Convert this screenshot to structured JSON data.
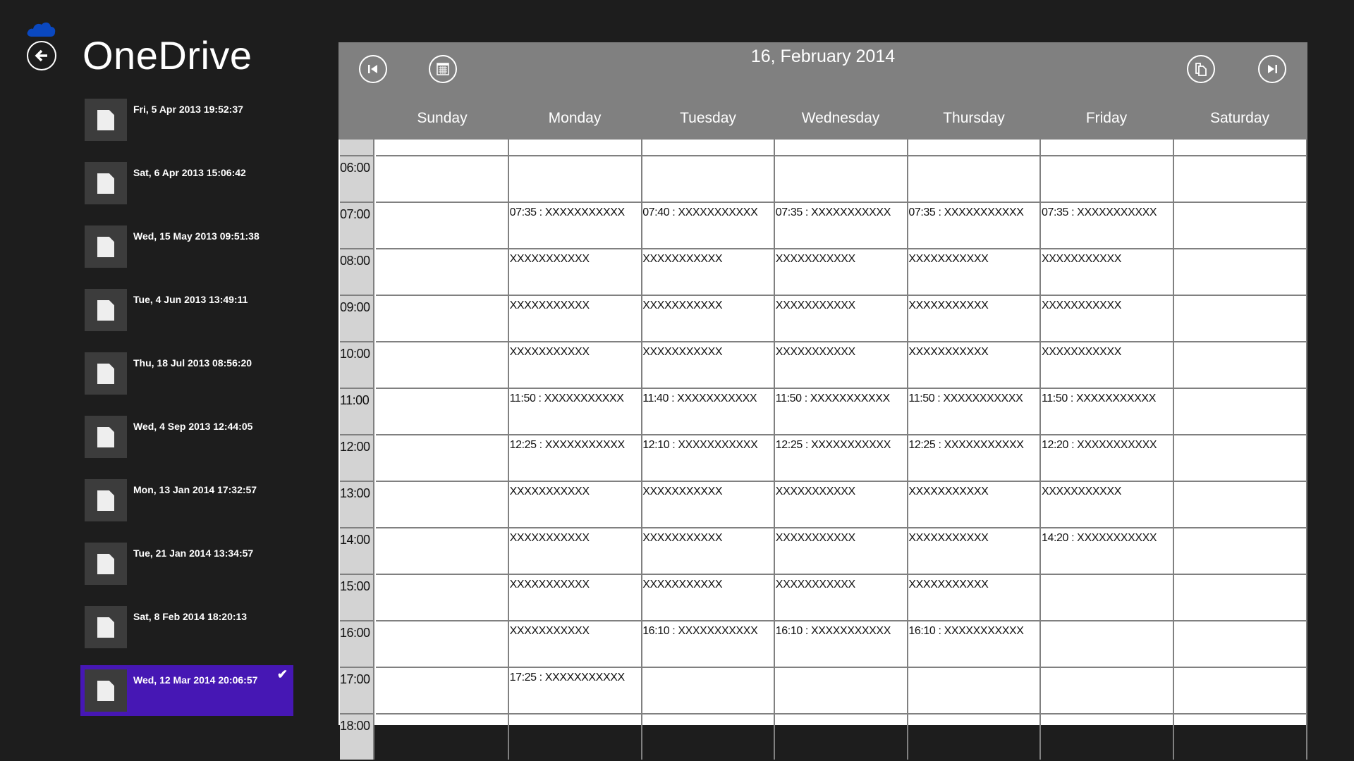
{
  "app": {
    "title": "OneDrive",
    "accent": "#4617b4",
    "logo_icon": "onedrive-cloud-icon"
  },
  "files": [
    {
      "label": "Fri, 5 Apr 2013 19:52:37",
      "selected": false
    },
    {
      "label": "Sat, 6 Apr 2013 15:06:42",
      "selected": false
    },
    {
      "label": "Wed, 15 May 2013 09:51:38",
      "selected": false
    },
    {
      "label": "Tue, 4 Jun 2013 13:49:11",
      "selected": false
    },
    {
      "label": "Thu, 18 Jul 2013 08:56:20",
      "selected": false
    },
    {
      "label": "Wed, 4 Sep 2013 12:44:05",
      "selected": false
    },
    {
      "label": "Mon, 13 Jan 2014 17:32:57",
      "selected": false
    },
    {
      "label": "Tue, 21 Jan 2014 13:34:57",
      "selected": false
    },
    {
      "label": "Sat, 8 Feb 2014 18:20:13",
      "selected": false
    },
    {
      "label": "Wed, 12 Mar 2014 20:06:57",
      "selected": true,
      "check": "✔"
    }
  ],
  "calendar": {
    "date": "16, February 2014",
    "days": [
      "Sunday",
      "Monday",
      "Tuesday",
      "Wednesday",
      "Thursday",
      "Friday",
      "Saturday"
    ],
    "rows": [
      {
        "time": "",
        "cells": [
          "",
          "",
          "",
          "",
          "",
          "",
          ""
        ]
      },
      {
        "time": "06:00",
        "cells": [
          "",
          "",
          "",
          "",
          "",
          "",
          ""
        ]
      },
      {
        "time": "07:00",
        "cells": [
          "",
          "07:35 : XXXXXXXXXXX",
          "07:40 : XXXXXXXXXXX",
          "07:35 : XXXXXXXXXXX",
          "07:35 : XXXXXXXXXXX",
          "07:35 : XXXXXXXXXXX",
          ""
        ]
      },
      {
        "time": "08:00",
        "cells": [
          "",
          "XXXXXXXXXXX",
          "XXXXXXXXXXX",
          "XXXXXXXXXXX",
          "XXXXXXXXXXX",
          "XXXXXXXXXXX",
          ""
        ]
      },
      {
        "time": "09:00",
        "cells": [
          "",
          "XXXXXXXXXXX",
          "XXXXXXXXXXX",
          "XXXXXXXXXXX",
          "XXXXXXXXXXX",
          "XXXXXXXXXXX",
          ""
        ]
      },
      {
        "time": "10:00",
        "cells": [
          "",
          "XXXXXXXXXXX",
          "XXXXXXXXXXX",
          "XXXXXXXXXXX",
          "XXXXXXXXXXX",
          "XXXXXXXXXXX",
          ""
        ]
      },
      {
        "time": "11:00",
        "cells": [
          "",
          "11:50 : XXXXXXXXXXX",
          "11:40 : XXXXXXXXXXX",
          "11:50 : XXXXXXXXXXX",
          "11:50 : XXXXXXXXXXX",
          "11:50 : XXXXXXXXXXX",
          ""
        ]
      },
      {
        "time": "12:00",
        "cells": [
          "",
          "12:25 : XXXXXXXXXXX",
          "12:10 : XXXXXXXXXXX",
          "12:25 : XXXXXXXXXXX",
          "12:25 : XXXXXXXXXXX",
          "12:20 : XXXXXXXXXXX",
          ""
        ]
      },
      {
        "time": "13:00",
        "cells": [
          "",
          "XXXXXXXXXXX",
          "XXXXXXXXXXX",
          "XXXXXXXXXXX",
          "XXXXXXXXXXX",
          "XXXXXXXXXXX",
          ""
        ]
      },
      {
        "time": "14:00",
        "cells": [
          "",
          "XXXXXXXXXXX",
          "XXXXXXXXXXX",
          "XXXXXXXXXXX",
          "XXXXXXXXXXX",
          "14:20 : XXXXXXXXXXX",
          ""
        ]
      },
      {
        "time": "15:00",
        "cells": [
          "",
          "XXXXXXXXXXX",
          "XXXXXXXXXXX",
          "XXXXXXXXXXX",
          "XXXXXXXXXXX",
          "",
          ""
        ]
      },
      {
        "time": "16:00",
        "cells": [
          "",
          "XXXXXXXXXXX",
          "16:10 : XXXXXXXXXXX",
          "16:10 : XXXXXXXXXXX",
          "16:10 : XXXXXXXXXXX",
          "",
          ""
        ]
      },
      {
        "time": "17:00",
        "cells": [
          "",
          "17:25 : XXXXXXXXXXX",
          "",
          "",
          "",
          "",
          ""
        ]
      },
      {
        "time": "18:00",
        "cells": [
          "",
          "",
          "",
          "",
          "",
          "",
          ""
        ]
      }
    ]
  },
  "icons": {
    "back": "back-arrow-icon",
    "first": "skip-to-start-icon",
    "calendar": "calendar-icon",
    "copy": "copy-icon",
    "last": "skip-to-end-icon",
    "file": "document-icon"
  }
}
